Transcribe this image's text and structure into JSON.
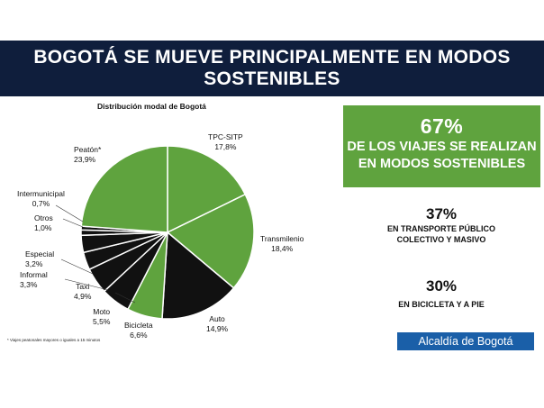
{
  "banner": {
    "line1": "BOGOTÁ SE MUEVE PRINCIPALMENTE EN MODOS",
    "line2": "SOSTENIBLES"
  },
  "chart_data": {
    "type": "pie",
    "title": "Distribución modal de Bogotá",
    "slices": [
      {
        "name": "TPC-SITP",
        "value": 17.8,
        "label": "17,8%",
        "color": "#5fa33e"
      },
      {
        "name": "Transmilenio",
        "value": 18.4,
        "label": "18,4%",
        "color": "#5fa33e"
      },
      {
        "name": "Auto",
        "value": 14.9,
        "label": "14,9%",
        "color": "#111111"
      },
      {
        "name": "Bicicleta",
        "value": 6.6,
        "label": "6,6%",
        "color": "#5fa33e"
      },
      {
        "name": "Moto",
        "value": 5.5,
        "label": "5,5%",
        "color": "#111111"
      },
      {
        "name": "Taxi",
        "value": 4.9,
        "label": "4,9%",
        "color": "#111111"
      },
      {
        "name": "Informal",
        "value": 3.3,
        "label": "3,3%",
        "color": "#111111"
      },
      {
        "name": "Especial",
        "value": 3.2,
        "label": "3,2%",
        "color": "#111111"
      },
      {
        "name": "Otros",
        "value": 1.0,
        "label": "1,0%",
        "color": "#111111"
      },
      {
        "name": "Intermunicipal",
        "value": 0.7,
        "label": "0,7%",
        "color": "#111111"
      },
      {
        "name": "Peatón*",
        "value": 23.9,
        "label": "23,9%",
        "color": "#5fa33e"
      }
    ],
    "footnote": "* Viajes peatonales mayores o iguales a 15 minutos"
  },
  "green_box": {
    "percent": "67%",
    "line1": "DE LOS VIAJES SE REALIZAN",
    "line2": "EN MODOS SOSTENIBLES"
  },
  "stat1": {
    "percent": "37%",
    "line1": "EN TRANSPORTE PÚBLICO",
    "line2": "COLECTIVO Y MASIVO"
  },
  "stat2": {
    "percent": "30%",
    "line1": "EN BICICLETA Y A PIE"
  },
  "logo": {
    "text": "Alcaldía de Bogotá"
  },
  "colors": {
    "green": "#5fa33e",
    "black": "#111111",
    "navy": "#0f1e3c",
    "blue": "#1a5fa8"
  }
}
